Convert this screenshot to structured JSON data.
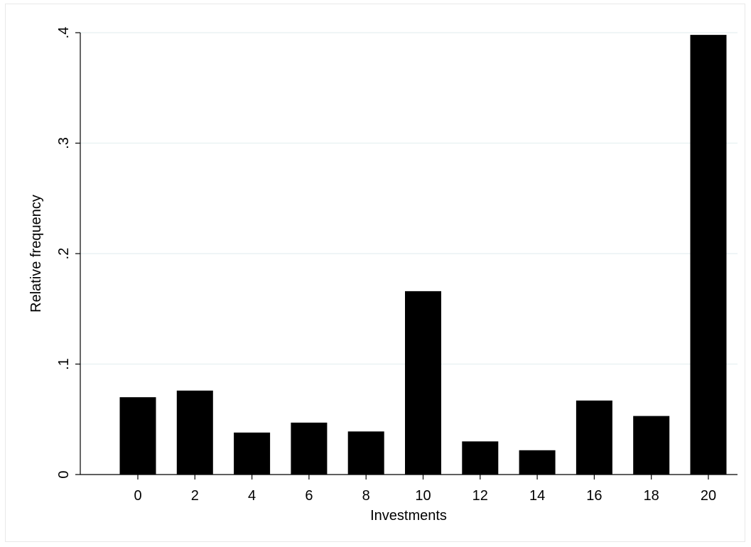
{
  "chart_data": {
    "type": "bar",
    "title": "",
    "xlabel": "Investments",
    "ylabel": "Relative frequency",
    "categories": [
      "0",
      "2",
      "4",
      "6",
      "8",
      "10",
      "12",
      "14",
      "16",
      "18",
      "20"
    ],
    "values": [
      0.07,
      0.076,
      0.038,
      0.047,
      0.039,
      0.166,
      0.03,
      0.022,
      0.067,
      0.053,
      0.398
    ],
    "ylim": [
      0,
      0.4
    ],
    "yticks": [
      0,
      0.1,
      0.2,
      0.3,
      0.4
    ],
    "ytick_labels": [
      "0",
      ".1",
      ".2",
      ".3",
      ".4"
    ],
    "grid": true,
    "bar_color": "#000000",
    "grid_color": "#eaf2f3",
    "legend": "none"
  }
}
